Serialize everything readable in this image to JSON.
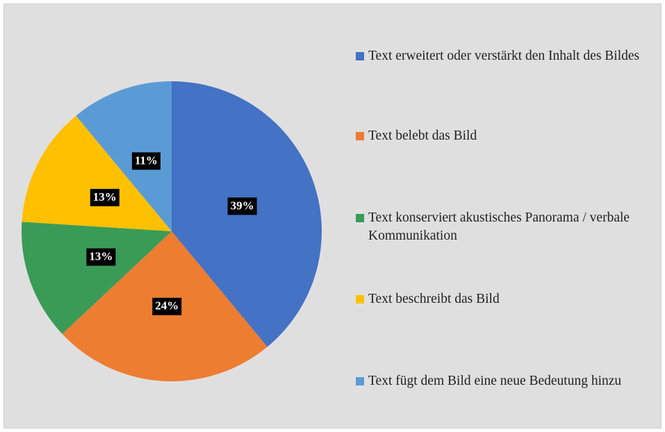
{
  "chart_data": {
    "type": "pie",
    "categories": [
      "Text erweitert oder verstärkt den Inhalt des Bildes",
      "Text belebt das Bild",
      "Text konserviert akustisches Panorama / verbale Kommunikation",
      "Text beschreibt das Bild",
      "Text fügt dem Bild eine neue Bedeutung hinzu"
    ],
    "values": [
      39,
      24,
      13,
      13,
      11
    ],
    "value_labels": [
      "39%",
      "24%",
      "13%",
      "13%",
      "11%"
    ],
    "colors": [
      "#4472c4",
      "#ed7d31",
      "#3a9b57",
      "#ffc000",
      "#5b9bd5"
    ],
    "legend": "right"
  }
}
